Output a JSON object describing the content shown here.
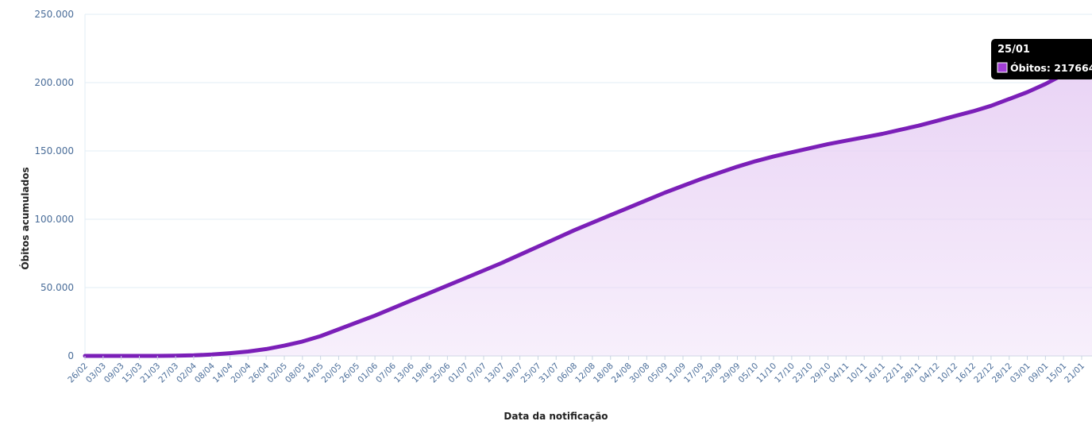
{
  "chart_data": {
    "type": "area",
    "xlabel": "Data da notificação",
    "ylabel": "Óbitos acumulados",
    "ylim": [
      0,
      250000
    ],
    "yticks": [
      0,
      50000,
      100000,
      150000,
      200000,
      250000
    ],
    "ytick_labels": [
      "0",
      "50.000",
      "100.000",
      "150.000",
      "200.000",
      "250.000"
    ],
    "grid": true,
    "colors": {
      "line": "#7b1fb8",
      "fill": "#e9d3f5",
      "tick_text": "#4a6d99",
      "tooltip_bg": "#000000",
      "marker": "#a23fd6"
    },
    "x_tick_labels": [
      "26/02",
      "03/03",
      "09/03",
      "15/03",
      "21/03",
      "27/03",
      "02/04",
      "08/04",
      "14/04",
      "20/04",
      "26/04",
      "02/05",
      "08/05",
      "14/05",
      "20/05",
      "26/05",
      "01/06",
      "07/06",
      "13/06",
      "19/06",
      "25/06",
      "01/07",
      "07/07",
      "13/07",
      "19/07",
      "25/07",
      "31/07",
      "06/08",
      "12/08",
      "18/08",
      "24/08",
      "30/08",
      "05/09",
      "11/09",
      "17/09",
      "23/09",
      "29/09",
      "05/10",
      "11/10",
      "17/10",
      "23/10",
      "29/10",
      "04/11",
      "10/11",
      "16/11",
      "22/11",
      "28/11",
      "04/12",
      "10/12",
      "16/12",
      "22/12",
      "28/12",
      "03/01",
      "09/01",
      "15/01",
      "21/01"
    ],
    "series": [
      {
        "name": "Óbitos",
        "x": [
          "26/02",
          "03/03",
          "09/03",
          "15/03",
          "21/03",
          "27/03",
          "02/04",
          "08/04",
          "14/04",
          "20/04",
          "26/04",
          "02/05",
          "08/05",
          "14/05",
          "20/05",
          "26/05",
          "01/06",
          "07/06",
          "13/06",
          "19/06",
          "25/06",
          "01/07",
          "07/07",
          "13/07",
          "19/07",
          "25/07",
          "31/07",
          "06/08",
          "12/08",
          "18/08",
          "24/08",
          "30/08",
          "05/09",
          "11/09",
          "17/09",
          "23/09",
          "29/09",
          "05/10",
          "11/10",
          "17/10",
          "23/10",
          "29/10",
          "04/11",
          "10/11",
          "16/11",
          "22/11",
          "28/11",
          "04/12",
          "10/12",
          "16/12",
          "22/12",
          "28/12",
          "03/01",
          "09/01",
          "15/01",
          "21/01",
          "25/01"
        ],
        "values": [
          0,
          0,
          0,
          0,
          0,
          150,
          400,
          1000,
          2000,
          3200,
          5000,
          7500,
          10500,
          14500,
          19500,
          24500,
          29500,
          35000,
          40500,
          46000,
          51500,
          57000,
          62500,
          68000,
          74000,
          80000,
          86000,
          92000,
          97500,
          103000,
          108500,
          114000,
          119500,
          124500,
          129500,
          134000,
          138500,
          142500,
          146000,
          149000,
          152000,
          155000,
          157500,
          160000,
          162500,
          165500,
          168500,
          172000,
          175500,
          179000,
          183000,
          188000,
          193000,
          199000,
          206000,
          213000,
          217664
        ]
      }
    ],
    "tooltip": {
      "date": "25/01",
      "label": "Óbitos: 217664"
    }
  }
}
